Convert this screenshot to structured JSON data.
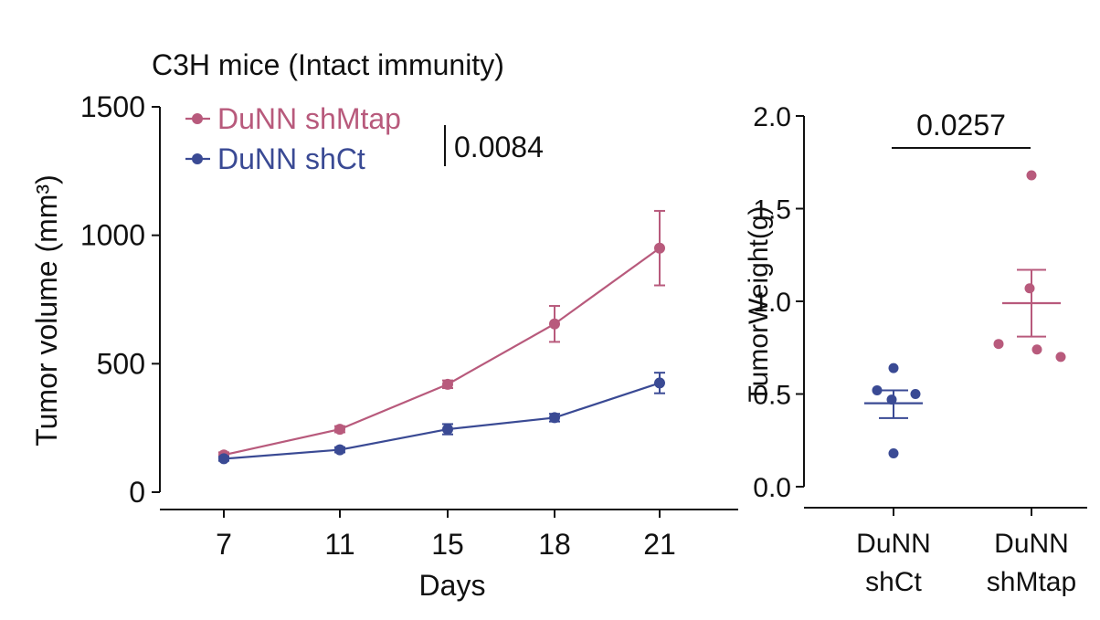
{
  "colors": {
    "shMtap": "#b85a7c",
    "shCt": "#3a4a94",
    "axis": "#111111"
  },
  "chart_data": [
    {
      "type": "line",
      "title": "C3H mice (Intact immunity)",
      "xlabel": "Days",
      "ylabel": "Tumor volume (mm³)",
      "x": [
        7,
        11,
        15,
        18,
        21
      ],
      "ylim": [
        0,
        1500
      ],
      "yticks": [
        0,
        500,
        1000,
        1500
      ],
      "grid": false,
      "legend": "top-left",
      "annotation": "0.0084",
      "series": [
        {
          "name": "DuNN shMtap",
          "values": [
            145,
            245,
            420,
            655,
            950
          ],
          "errors": [
            10,
            12,
            15,
            70,
            145
          ]
        },
        {
          "name": "DuNN shCt",
          "values": [
            130,
            165,
            245,
            290,
            425
          ],
          "errors": [
            8,
            10,
            20,
            15,
            40
          ]
        }
      ]
    },
    {
      "type": "scatter",
      "ylabel": "TumorWeight(g)",
      "ylim": [
        0,
        2.0
      ],
      "yticks": [
        "0.0",
        "0.5",
        "1.0",
        "1.5",
        "2.0"
      ],
      "grid": false,
      "annotation": "0.0257",
      "categories": [
        "DuNN\nshCt",
        "DuNN\nshMtap"
      ],
      "groups": [
        {
          "points": [
            0.64,
            0.52,
            0.47,
            0.5,
            0.18
          ],
          "mean": 0.45,
          "sem": [
            0.37,
            0.52
          ]
        },
        {
          "points": [
            1.68,
            1.07,
            0.77,
            0.74,
            0.7
          ],
          "mean": 0.99,
          "sem": [
            0.81,
            1.17
          ]
        }
      ]
    }
  ]
}
